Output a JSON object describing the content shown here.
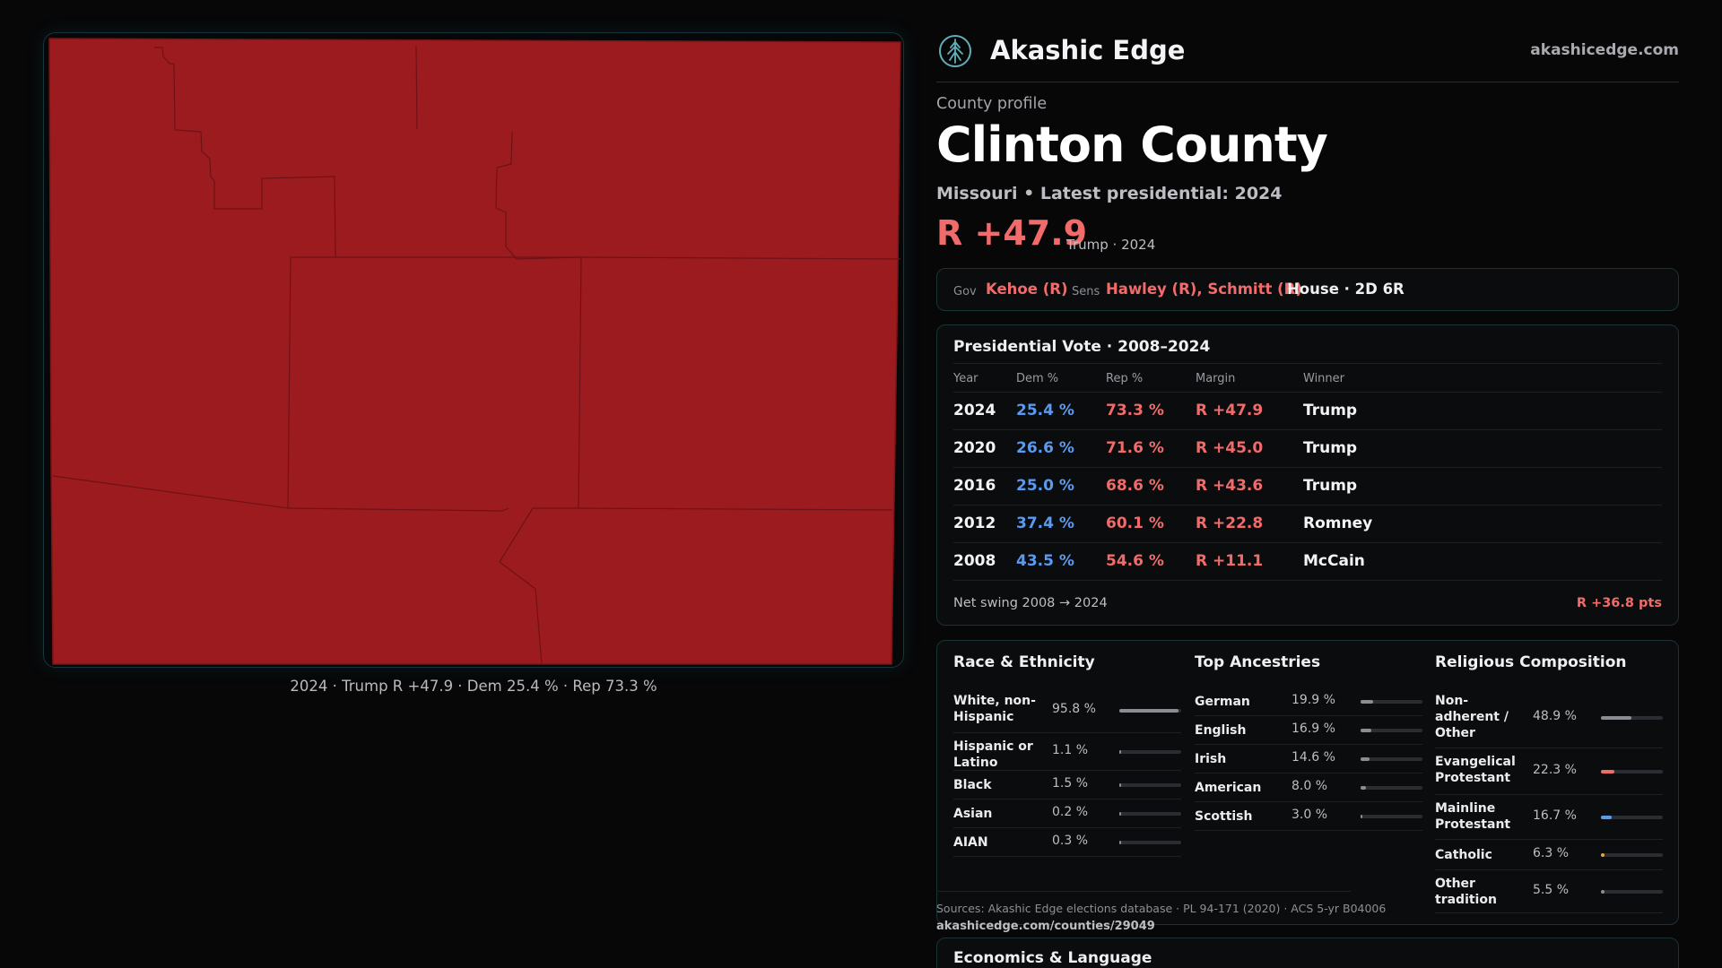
{
  "map": {
    "caption": "2024 · Trump R +47.9 · Dem 25.4 % · Rep 73.3 %",
    "fill_color": "#9c1b1f"
  },
  "header": {
    "brand": "Akashic Edge",
    "domain": "akashicedge.com",
    "logo_icon": "tree-logo-icon"
  },
  "profile": {
    "kicker": "County profile",
    "title": "Clinton County",
    "subtitle": "Missouri • Latest presidential: 2024",
    "margin": "R +47.9",
    "margin_note": "Trump · 2024"
  },
  "officials": {
    "gov_label": "Gov",
    "gov": "Kehoe (R)",
    "sens_label": "Sens",
    "sens": "Hawley (R), Schmitt (R)",
    "house": "House · 2D 6R"
  },
  "presidential": {
    "title": "Presidential Vote · 2008–2024",
    "columns": [
      "Year",
      "Dem %",
      "Rep %",
      "Margin",
      "Winner"
    ],
    "rows": [
      {
        "year": "2024",
        "dem": "25.4 %",
        "rep": "73.3 %",
        "margin": "R +47.9",
        "winner": "Trump"
      },
      {
        "year": "2020",
        "dem": "26.6 %",
        "rep": "71.6 %",
        "margin": "R +45.0",
        "winner": "Trump"
      },
      {
        "year": "2016",
        "dem": "25.0 %",
        "rep": "68.6 %",
        "margin": "R +43.6",
        "winner": "Trump"
      },
      {
        "year": "2012",
        "dem": "37.4 %",
        "rep": "60.1 %",
        "margin": "R +22.8",
        "winner": "Romney"
      },
      {
        "year": "2008",
        "dem": "43.5 %",
        "rep": "54.6 %",
        "margin": "R +11.1",
        "winner": "McCain"
      }
    ],
    "swing_label": "Net swing 2008 → 2024",
    "swing_value": "R +36.8 pts"
  },
  "race": {
    "title": "Race & Ethnicity",
    "items": [
      {
        "label": "White, non-Hispanic",
        "value": "95.8 %",
        "pct": 95.8,
        "color": "#8a8d94"
      },
      {
        "label": "Hispanic or Latino",
        "value": "1.1 %",
        "pct": 1.1,
        "color": "#8a8d94"
      },
      {
        "label": "Black",
        "value": "1.5 %",
        "pct": 1.5,
        "color": "#8a8d94"
      },
      {
        "label": "Asian",
        "value": "0.2 %",
        "pct": 0.2,
        "color": "#8a8d94"
      },
      {
        "label": "AIAN",
        "value": "0.3 %",
        "pct": 0.3,
        "color": "#8a8d94"
      }
    ]
  },
  "ancestry": {
    "title": "Top Ancestries",
    "items": [
      {
        "label": "German",
        "value": "19.9 %",
        "pct": 19.9,
        "color": "#8a8d94"
      },
      {
        "label": "English",
        "value": "16.9 %",
        "pct": 16.9,
        "color": "#8a8d94"
      },
      {
        "label": "Irish",
        "value": "14.6 %",
        "pct": 14.6,
        "color": "#8a8d94"
      },
      {
        "label": "American",
        "value": "8.0 %",
        "pct": 8.0,
        "color": "#8a8d94"
      },
      {
        "label": "Scottish",
        "value": "3.0 %",
        "pct": 3.0,
        "color": "#8a8d94"
      }
    ]
  },
  "religion": {
    "title": "Religious Composition",
    "items": [
      {
        "label": "Non-adherent / Other",
        "value": "48.9 %",
        "pct": 48.9,
        "color": "#8a8d94"
      },
      {
        "label": "Evangelical Protestant",
        "value": "22.3 %",
        "pct": 22.3,
        "color": "#f26b6b"
      },
      {
        "label": "Mainline Protestant",
        "value": "16.7 %",
        "pct": 16.7,
        "color": "#5a9bf0"
      },
      {
        "label": "Catholic",
        "value": "6.3 %",
        "pct": 6.3,
        "color": "#e8a33c"
      },
      {
        "label": "Other tradition",
        "value": "5.5 %",
        "pct": 5.5,
        "color": "#8a8d94"
      }
    ]
  },
  "sources": {
    "text": "Sources: Akashic Edge elections database · PL 94-171 (2020) · ACS 5-yr B04006",
    "url": "akashicedge.com/counties/29049"
  },
  "economics": {
    "title": "Economics & Language"
  }
}
